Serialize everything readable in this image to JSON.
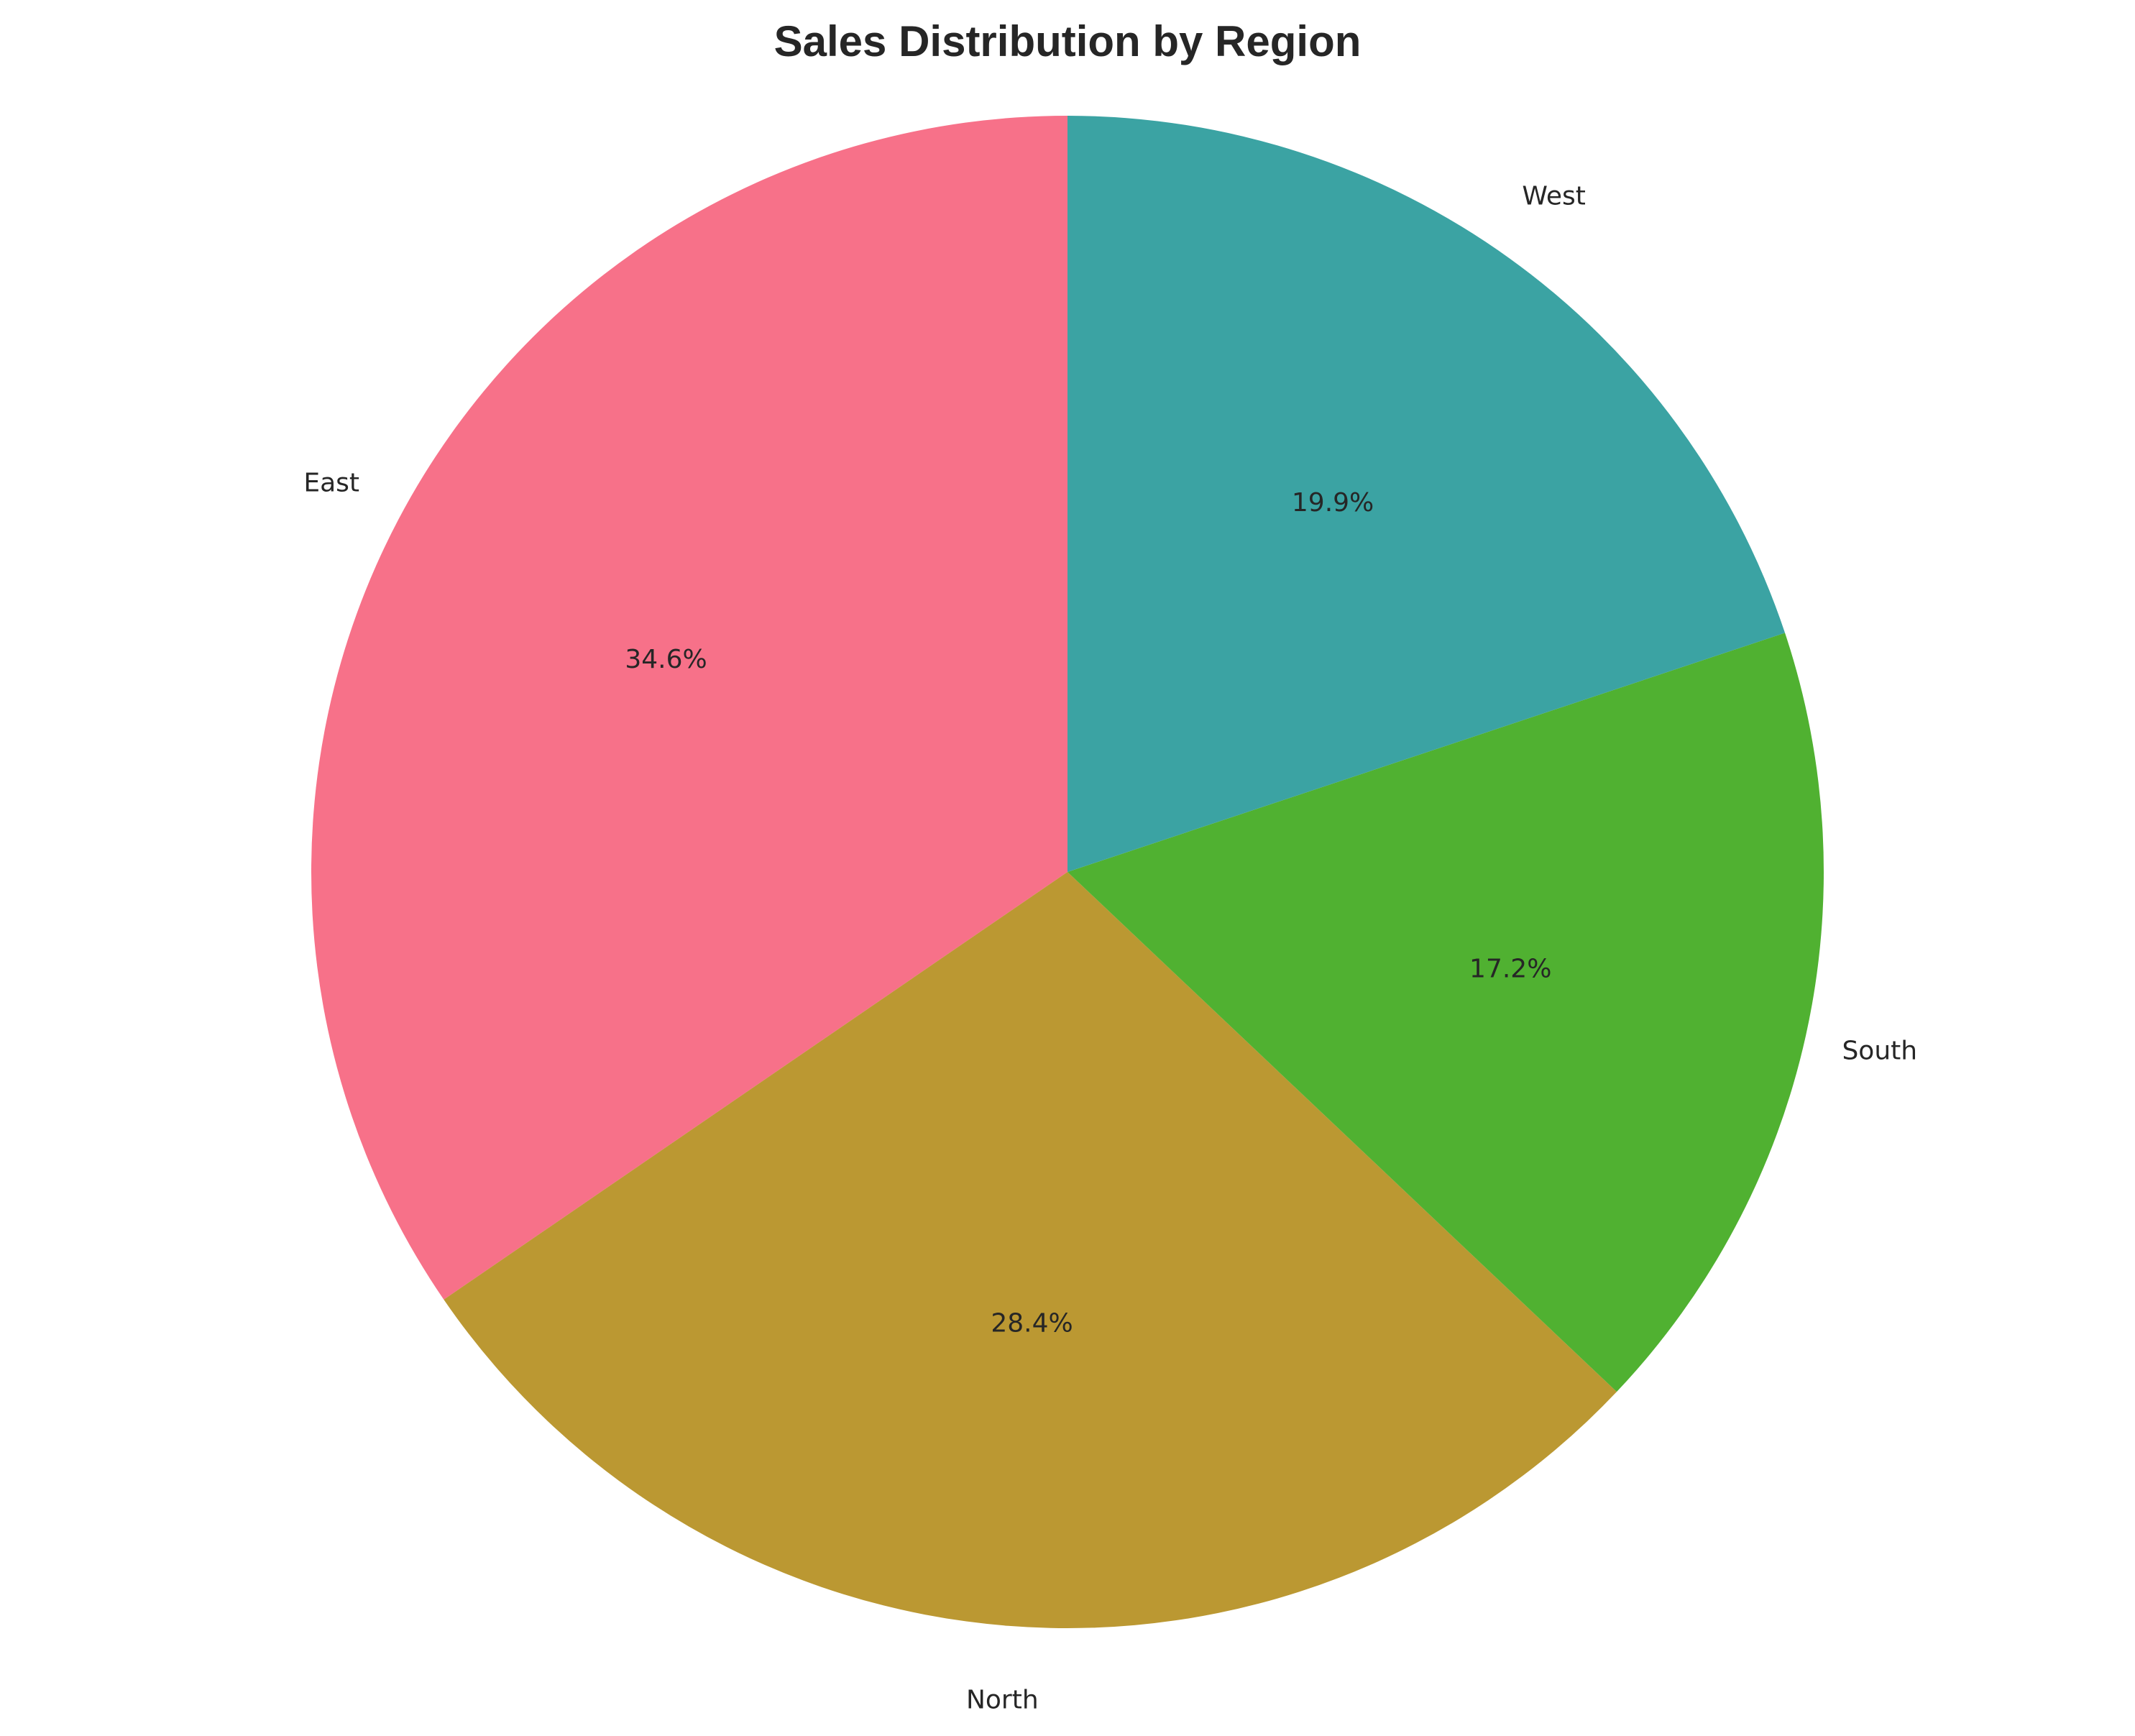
{
  "chart_data": {
    "type": "pie",
    "title": "Sales Distribution by Region",
    "start_angle": 90,
    "direction": "counterclockwise",
    "legend": "none",
    "slices": [
      {
        "label": "East",
        "value": 34.6,
        "pct_label": "34.6%",
        "color": "#f77189"
      },
      {
        "label": "North",
        "value": 28.4,
        "pct_label": "28.4%",
        "color": "#bb9832"
      },
      {
        "label": "South",
        "value": 17.2,
        "pct_label": "17.2%",
        "color": "#50b131"
      },
      {
        "label": "West",
        "value": 19.9,
        "pct_label": "19.9%",
        "color": "#3ba3a3"
      }
    ]
  }
}
